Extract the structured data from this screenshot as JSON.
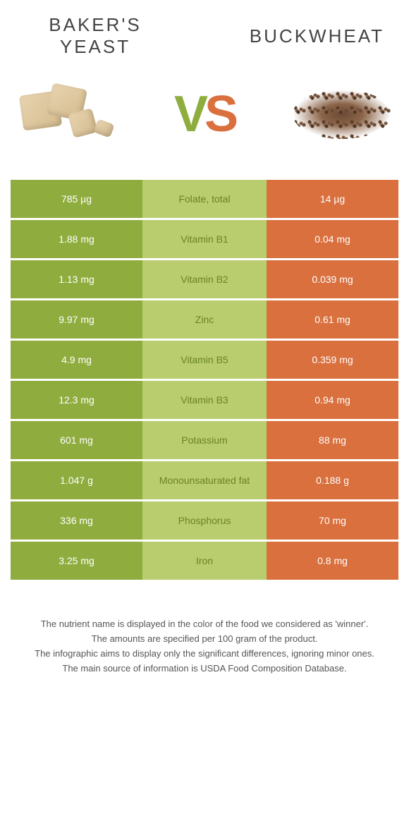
{
  "colors": {
    "left_bg": "#8fad3f",
    "mid_bg": "#b9cd6f",
    "right_bg": "#d9703e",
    "mid_text": "#6a8224"
  },
  "titles": {
    "left": "BAKER'S\nYEAST",
    "right": "BUCKWHEAT"
  },
  "vs": {
    "v": "V",
    "s": "S"
  },
  "rows": [
    {
      "left": "785 µg",
      "name": "Folate, total",
      "right": "14 µg"
    },
    {
      "left": "1.88 mg",
      "name": "Vitamin B1",
      "right": "0.04 mg"
    },
    {
      "left": "1.13 mg",
      "name": "Vitamin B2",
      "right": "0.039 mg"
    },
    {
      "left": "9.97 mg",
      "name": "Zinc",
      "right": "0.61 mg"
    },
    {
      "left": "4.9 mg",
      "name": "Vitamin B5",
      "right": "0.359 mg"
    },
    {
      "left": "12.3 mg",
      "name": "Vitamin B3",
      "right": "0.94 mg"
    },
    {
      "left": "601 mg",
      "name": "Potassium",
      "right": "88 mg"
    },
    {
      "left": "1.047 g",
      "name": "Monounsaturated fat",
      "right": "0.188 g"
    },
    {
      "left": "336 mg",
      "name": "Phosphorus",
      "right": "70 mg"
    },
    {
      "left": "3.25 mg",
      "name": "Iron",
      "right": "0.8 mg"
    }
  ],
  "footer": {
    "line1": "The nutrient name is displayed in the color of the food we considered as 'winner'.",
    "line2": "The amounts are specified per 100 gram of the product.",
    "line3": "The infographic aims to display only the significant differences, ignoring minor ones.",
    "line4": "The main source of information is USDA Food Composition Database."
  }
}
